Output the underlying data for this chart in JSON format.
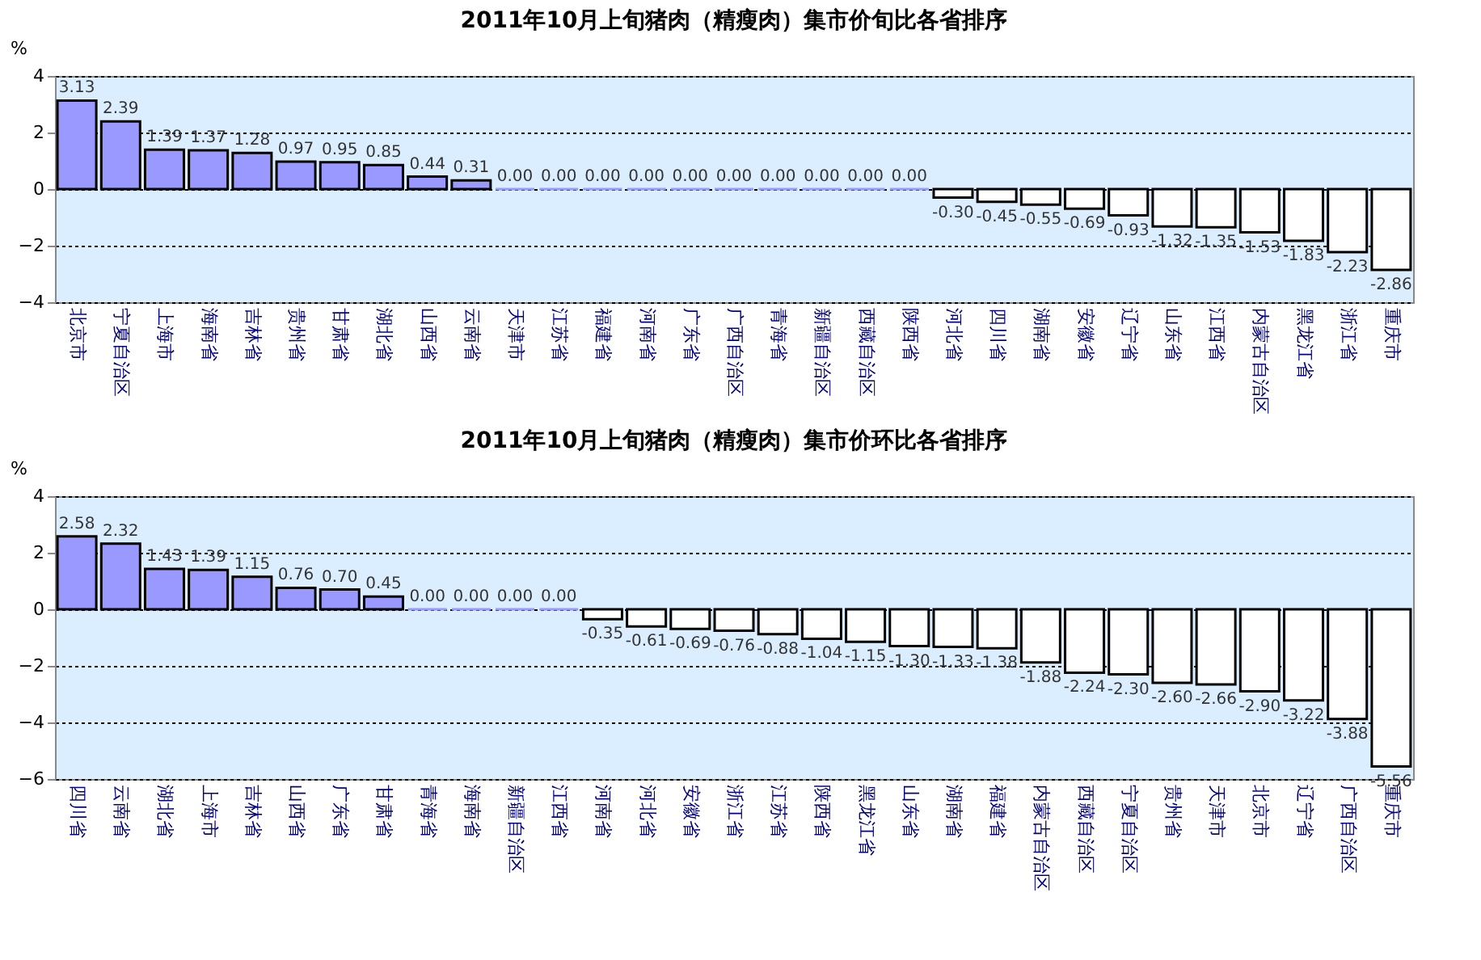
{
  "chart_data": [
    {
      "type": "bar",
      "title": "2011年10月上旬猪肉（精瘦肉）集市价旬比各省排序",
      "ylabel": "%",
      "categories": [
        "北京市",
        "宁夏自治区",
        "上海市",
        "海南省",
        "吉林省",
        "贵州省",
        "甘肃省",
        "湖北省",
        "山西省",
        "云南省",
        "天津市",
        "江苏省",
        "福建省",
        "河南省",
        "广东省",
        "广西自治区",
        "青海省",
        "新疆自治区",
        "西藏自治区",
        "陕西省",
        "河北省",
        "四川省",
        "湖南省",
        "安徽省",
        "辽宁省",
        "山东省",
        "江西省",
        "内蒙古自治区",
        "黑龙江省",
        "浙江省",
        "重庆市"
      ],
      "values": [
        3.13,
        2.39,
        1.39,
        1.37,
        1.28,
        0.97,
        0.95,
        0.85,
        0.44,
        0.31,
        0,
        0,
        0,
        0,
        0,
        0,
        0,
        0,
        0,
        0,
        -0.3,
        -0.45,
        -0.55,
        -0.69,
        -0.93,
        -1.32,
        -1.35,
        -1.53,
        -1.83,
        -2.23,
        -2.86
      ],
      "colors": [
        "#9999ff",
        "#9999ff",
        "#9999ff",
        "#9999ff",
        "#9999ff",
        "#9999ff",
        "#9999ff",
        "#9999ff",
        "#9999ff",
        "#9999ff",
        "#9999ff",
        "#9999ff",
        "#9999ff",
        "#9999ff",
        "#9999ff",
        "#9999ff",
        "#9999ff",
        "#9999ff",
        "#9999ff",
        "#9999ff",
        "#ffffff",
        "#ffffff",
        "#ffffff",
        "#ffffff",
        "#ffffff",
        "#ffffff",
        "#ffffff",
        "#ffffff",
        "#ffffff",
        "#ffffff",
        "#ffffff"
      ],
      "value_labels": [
        "3.13",
        "2.39",
        "1.39",
        "1.37",
        "1.28",
        "0.97",
        "0.95",
        "0.85",
        "0.44",
        "0.31",
        "0.00",
        "0.00",
        "0.00",
        "0.00",
        "0.00",
        "0.00",
        "0.00",
        "0.00",
        "0.00",
        "0.00",
        "-0.30",
        "-0.45",
        "-0.55",
        "-0.69",
        "-0.93",
        "-1.32",
        "-1.35",
        "-1.53",
        "-1.83",
        "-2.23",
        "-2.86"
      ],
      "ylim": [
        -4,
        4
      ],
      "yticks": [
        -4,
        -2,
        0,
        2,
        4
      ],
      "grid": "y",
      "data_labels": true
    },
    {
      "type": "bar",
      "title": "2011年10月上旬猪肉（精瘦肉）集市价环比各省排序",
      "ylabel": "%",
      "categories": [
        "四川省",
        "云南省",
        "湖北省",
        "上海市",
        "吉林省",
        "山西省",
        "广东省",
        "甘肃省",
        "青海省",
        "海南省",
        "新疆自治区",
        "江西省",
        "河南省",
        "河北省",
        "安徽省",
        "浙江省",
        "江苏省",
        "陕西省",
        "黑龙江省",
        "山东省",
        "湖南省",
        "福建省",
        "内蒙古自治区",
        "西藏自治区",
        "宁夏自治区",
        "贵州省",
        "天津市",
        "北京市",
        "辽宁省",
        "广西自治区",
        "重庆市"
      ],
      "values": [
        2.58,
        2.32,
        1.43,
        1.39,
        1.15,
        0.76,
        0.7,
        0.45,
        0,
        0,
        0,
        0,
        -0.35,
        -0.61,
        -0.69,
        -0.76,
        -0.88,
        -1.04,
        -1.15,
        -1.3,
        -1.33,
        -1.38,
        -1.88,
        -2.24,
        -2.3,
        -2.6,
        -2.66,
        -2.9,
        -3.22,
        -3.88,
        -5.56
      ],
      "colors": [
        "#9999ff",
        "#9999ff",
        "#9999ff",
        "#9999ff",
        "#9999ff",
        "#9999ff",
        "#9999ff",
        "#9999ff",
        "#9999ff",
        "#9999ff",
        "#9999ff",
        "#9999ff",
        "#ffffff",
        "#ffffff",
        "#ffffff",
        "#ffffff",
        "#ffffff",
        "#ffffff",
        "#ffffff",
        "#ffffff",
        "#ffffff",
        "#ffffff",
        "#ffffff",
        "#ffffff",
        "#ffffff",
        "#ffffff",
        "#ffffff",
        "#ffffff",
        "#ffffff",
        "#ffffff",
        "#ffffff"
      ],
      "value_labels": [
        "2.58",
        "2.32",
        "1.43",
        "1.39",
        "1.15",
        "0.76",
        "0.70",
        "0.45",
        "0.00",
        "0.00",
        "0.00",
        "0.00",
        "-0.35",
        "-0.61",
        "-0.69",
        "-0.76",
        "-0.88",
        "-1.04",
        "-1.15",
        "-1.30",
        "-1.33",
        "-1.38",
        "-1.88",
        "-2.24",
        "-2.30",
        "-2.60",
        "-2.66",
        "-2.90",
        "-3.22",
        "-3.88",
        "-5.56"
      ],
      "ylim": [
        -6,
        4
      ],
      "yticks": [
        -6,
        -4,
        -2,
        0,
        2,
        4
      ],
      "grid": "y",
      "data_labels": true
    }
  ]
}
